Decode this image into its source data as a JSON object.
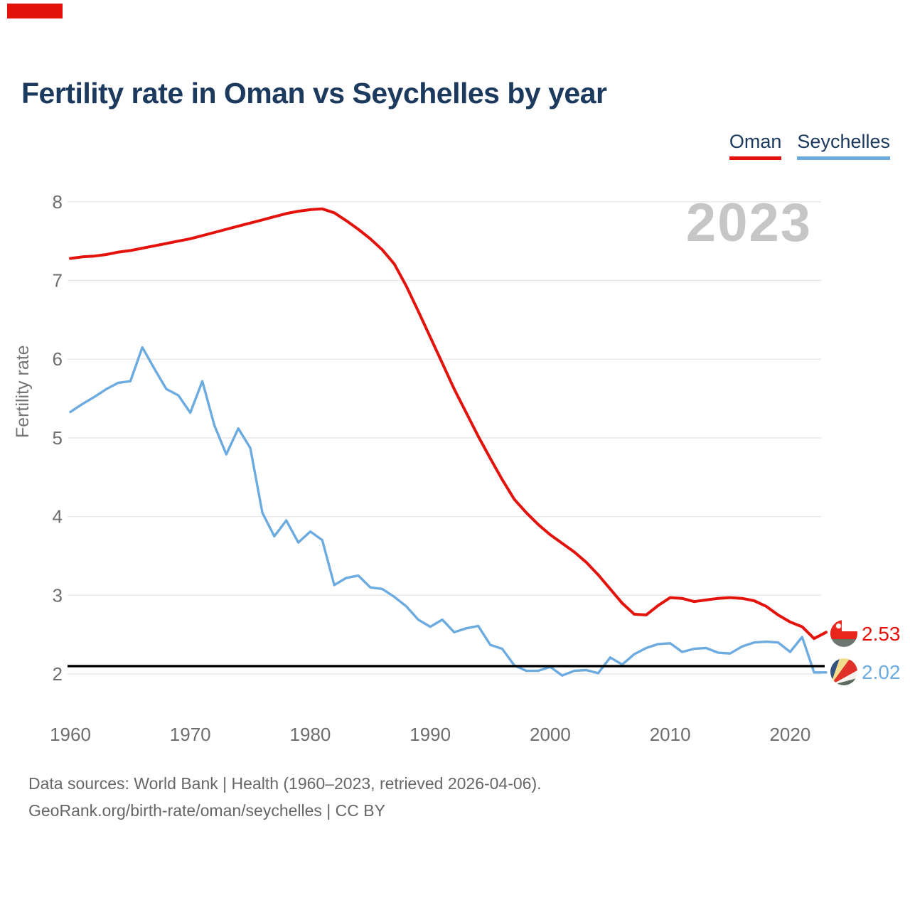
{
  "brand": {
    "tab_color": "#e3120b"
  },
  "header": {
    "title": "Fertility rate in Oman vs Seychelles by year"
  },
  "legend": [
    {
      "label": "Oman",
      "color": "#e3120b"
    },
    {
      "label": "Seychelles",
      "color": "#6cabe0"
    }
  ],
  "watermark": "2023",
  "end_labels": [
    {
      "series": "Oman",
      "value": "2.53",
      "color": "#e3120b",
      "icon": "oman-flag"
    },
    {
      "series": "Seychelles",
      "value": "2.02",
      "color": "#6cabe0",
      "icon": "seychelles-flag"
    }
  ],
  "footer": {
    "line1": "Data sources: World Bank | Health (1960–2023, retrieved 2026-04-06).",
    "line2": "GeoRank.org/birth-rate/oman/seychelles | CC BY"
  },
  "chart_data": {
    "type": "line",
    "title": "Fertility rate in Oman vs Seychelles by year",
    "xlabel": "",
    "ylabel": "Fertility rate",
    "xlim": [
      1960,
      2023
    ],
    "ylim": [
      2,
      8
    ],
    "x_ticks": [
      1960,
      1970,
      1980,
      1990,
      2000,
      2010,
      2020
    ],
    "y_ticks": [
      2,
      3,
      4,
      5,
      6,
      7,
      8
    ],
    "grid": true,
    "legend_position": "top-right",
    "reference_line": {
      "value": 2.1,
      "color": "#000000",
      "label": ""
    },
    "x": [
      1960,
      1961,
      1962,
      1963,
      1964,
      1965,
      1966,
      1967,
      1968,
      1969,
      1970,
      1971,
      1972,
      1973,
      1974,
      1975,
      1976,
      1977,
      1978,
      1979,
      1980,
      1981,
      1982,
      1983,
      1984,
      1985,
      1986,
      1987,
      1988,
      1989,
      1990,
      1991,
      1992,
      1993,
      1994,
      1995,
      1996,
      1997,
      1998,
      1999,
      2000,
      2001,
      2002,
      2003,
      2004,
      2005,
      2006,
      2007,
      2008,
      2009,
      2010,
      2011,
      2012,
      2013,
      2014,
      2015,
      2016,
      2017,
      2018,
      2019,
      2020,
      2021,
      2022,
      2023
    ],
    "series": [
      {
        "name": "Oman",
        "color": "#e3120b",
        "values": [
          7.28,
          7.3,
          7.31,
          7.33,
          7.36,
          7.38,
          7.41,
          7.44,
          7.47,
          7.5,
          7.53,
          7.57,
          7.61,
          7.65,
          7.69,
          7.73,
          7.77,
          7.81,
          7.85,
          7.88,
          7.9,
          7.91,
          7.86,
          7.76,
          7.65,
          7.53,
          7.39,
          7.21,
          6.93,
          6.61,
          6.28,
          5.95,
          5.62,
          5.32,
          5.02,
          4.74,
          4.47,
          4.22,
          4.05,
          3.9,
          3.77,
          3.66,
          3.55,
          3.42,
          3.26,
          3.08,
          2.9,
          2.76,
          2.75,
          2.87,
          2.97,
          2.96,
          2.92,
          2.94,
          2.96,
          2.97,
          2.96,
          2.93,
          2.86,
          2.75,
          2.66,
          2.6,
          2.45,
          2.53
        ]
      },
      {
        "name": "Seychelles",
        "color": "#6cabe0",
        "values": [
          5.33,
          5.43,
          5.52,
          5.62,
          5.7,
          5.72,
          6.15,
          5.88,
          5.62,
          5.54,
          5.32,
          5.72,
          5.16,
          4.79,
          5.12,
          4.87,
          4.05,
          3.75,
          3.95,
          3.67,
          3.81,
          3.7,
          3.13,
          3.22,
          3.25,
          3.1,
          3.08,
          2.98,
          2.86,
          2.69,
          2.6,
          2.69,
          2.53,
          2.58,
          2.61,
          2.37,
          2.32,
          2.11,
          2.04,
          2.04,
          2.09,
          1.98,
          2.04,
          2.05,
          2.01,
          2.21,
          2.12,
          2.25,
          2.33,
          2.38,
          2.39,
          2.28,
          2.32,
          2.33,
          2.27,
          2.26,
          2.35,
          2.4,
          2.41,
          2.4,
          2.28,
          2.47,
          2.02,
          2.02
        ]
      }
    ]
  }
}
